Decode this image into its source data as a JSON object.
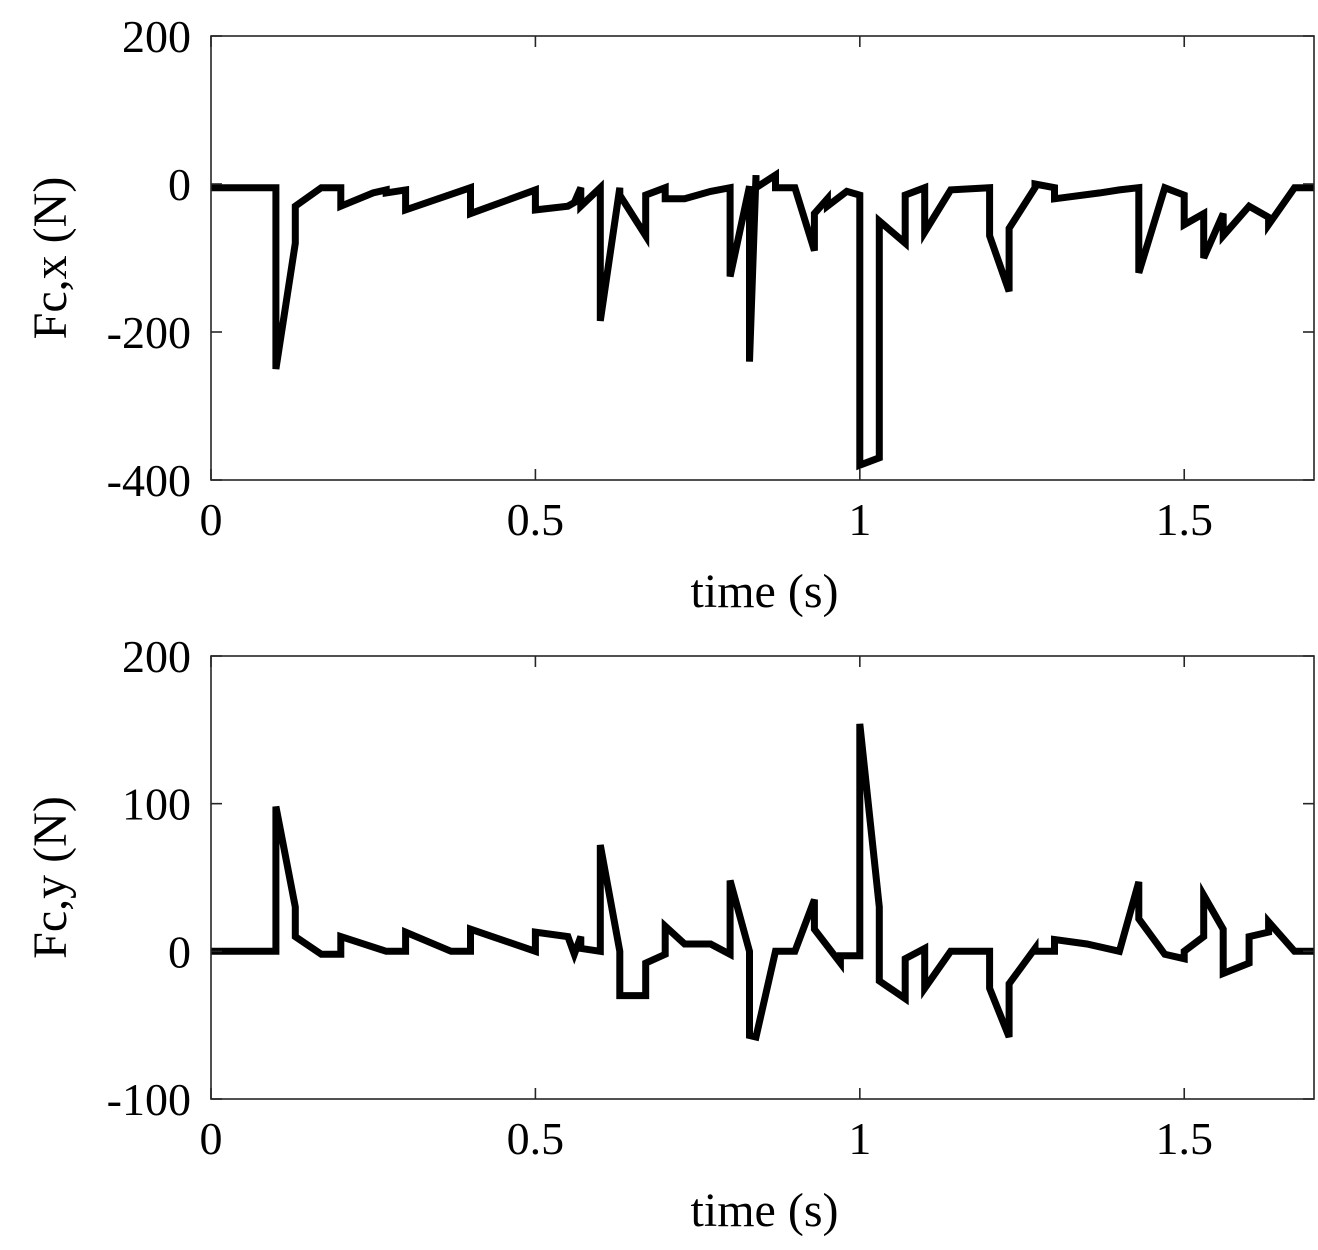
{
  "chart_data": [
    {
      "type": "line",
      "title": "",
      "xlabel": "time (s)",
      "ylabel": "Fc,x (N)",
      "xlim": [
        0,
        1.7
      ],
      "ylim": [
        -400,
        200
      ],
      "xticks": [
        0,
        0.5,
        1,
        1.5
      ],
      "xtick_labels": [
        "0",
        "0.5",
        "1",
        "1.5"
      ],
      "yticks": [
        -400,
        -200,
        0,
        200
      ],
      "ytick_labels": [
        "-400",
        "-200",
        "0",
        "200"
      ],
      "grid": false,
      "line_color": "#000000",
      "series": [
        {
          "x": [
            0,
            0.07,
            0.1,
            0.1,
            0.13,
            0.13,
            0.17,
            0.2,
            0.2,
            0.25,
            0.27,
            0.27,
            0.3,
            0.3,
            0.4,
            0.4,
            0.5,
            0.5,
            0.55,
            0.56,
            0.57,
            0.57,
            0.6,
            0.6,
            0.63,
            0.63,
            0.67,
            0.67,
            0.7,
            0.7,
            0.73,
            0.77,
            0.8,
            0.8,
            0.83,
            0.83,
            0.84,
            0.84,
            0.87,
            0.87,
            0.9,
            0.93,
            0.93,
            0.95,
            0.95,
            0.98,
            1.0,
            1.0,
            1.03,
            1.03,
            1.07,
            1.07,
            1.1,
            1.1,
            1.14,
            1.2,
            1.2,
            1.23,
            1.23,
            1.27,
            1.27,
            1.3,
            1.3,
            1.37,
            1.4,
            1.43,
            1.43,
            1.47,
            1.5,
            1.5,
            1.53,
            1.53,
            1.56,
            1.56,
            1.6,
            1.63,
            1.63,
            1.67,
            1.7
          ],
          "values": [
            -5,
            -5,
            -5,
            -250,
            -80,
            -30,
            -5,
            -5,
            -30,
            -12,
            -8,
            -12,
            -8,
            -35,
            -5,
            -40,
            -8,
            -35,
            -30,
            -25,
            -5,
            -30,
            -5,
            -185,
            -5,
            -15,
            -70,
            -15,
            -5,
            -20,
            -20,
            -10,
            -5,
            -125,
            -3,
            -240,
            12,
            -5,
            12,
            -5,
            -5,
            -90,
            -40,
            -20,
            -30,
            -10,
            -15,
            -380,
            -370,
            -50,
            -80,
            -15,
            -5,
            -65,
            -8,
            -5,
            -70,
            -145,
            -60,
            -5,
            0,
            -5,
            -20,
            -12,
            -8,
            -5,
            -120,
            -5,
            -15,
            -55,
            -40,
            -100,
            -40,
            -70,
            -30,
            -45,
            -55,
            -5,
            -5
          ]
        }
      ]
    },
    {
      "type": "line",
      "title": "",
      "xlabel": "time (s)",
      "ylabel": "Fc,y (N)",
      "xlim": [
        0,
        1.7
      ],
      "ylim": [
        -100,
        200
      ],
      "xticks": [
        0,
        0.5,
        1,
        1.5
      ],
      "xtick_labels": [
        "0",
        "0.5",
        "1",
        "1.5"
      ],
      "yticks": [
        -100,
        0,
        100,
        200
      ],
      "ytick_labels": [
        "-100",
        "0",
        "100",
        "200"
      ],
      "grid": false,
      "line_color": "#000000",
      "series": [
        {
          "x": [
            0,
            0.07,
            0.1,
            0.1,
            0.13,
            0.13,
            0.17,
            0.2,
            0.2,
            0.27,
            0.27,
            0.3,
            0.3,
            0.37,
            0.4,
            0.4,
            0.5,
            0.5,
            0.55,
            0.56,
            0.57,
            0.57,
            0.6,
            0.6,
            0.63,
            0.63,
            0.67,
            0.67,
            0.7,
            0.7,
            0.73,
            0.77,
            0.8,
            0.8,
            0.83,
            0.83,
            0.84,
            0.87,
            0.87,
            0.9,
            0.93,
            0.93,
            0.97,
            0.97,
            1.0,
            1.0,
            1.03,
            1.03,
            1.07,
            1.07,
            1.1,
            1.1,
            1.14,
            1.2,
            1.2,
            1.23,
            1.23,
            1.27,
            1.27,
            1.3,
            1.3,
            1.35,
            1.4,
            1.43,
            1.43,
            1.47,
            1.5,
            1.5,
            1.53,
            1.53,
            1.56,
            1.56,
            1.6,
            1.6,
            1.63,
            1.63,
            1.67,
            1.7
          ],
          "values": [
            0,
            0,
            0,
            98,
            30,
            10,
            -2,
            -2,
            10,
            0,
            0,
            0,
            13,
            0,
            0,
            15,
            0,
            13,
            10,
            -2,
            10,
            2,
            0,
            72,
            0,
            -30,
            -30,
            -8,
            -2,
            17,
            5,
            5,
            -2,
            48,
            0,
            -57,
            -58,
            0,
            0,
            0,
            35,
            15,
            -8,
            -3,
            -3,
            154,
            30,
            -20,
            -32,
            -5,
            2,
            -25,
            0,
            0,
            -25,
            -58,
            -22,
            2,
            0,
            0,
            8,
            5,
            0,
            47,
            22,
            -2,
            -5,
            0,
            10,
            38,
            15,
            -15,
            -8,
            10,
            13,
            20,
            0,
            0
          ]
        }
      ]
    }
  ]
}
